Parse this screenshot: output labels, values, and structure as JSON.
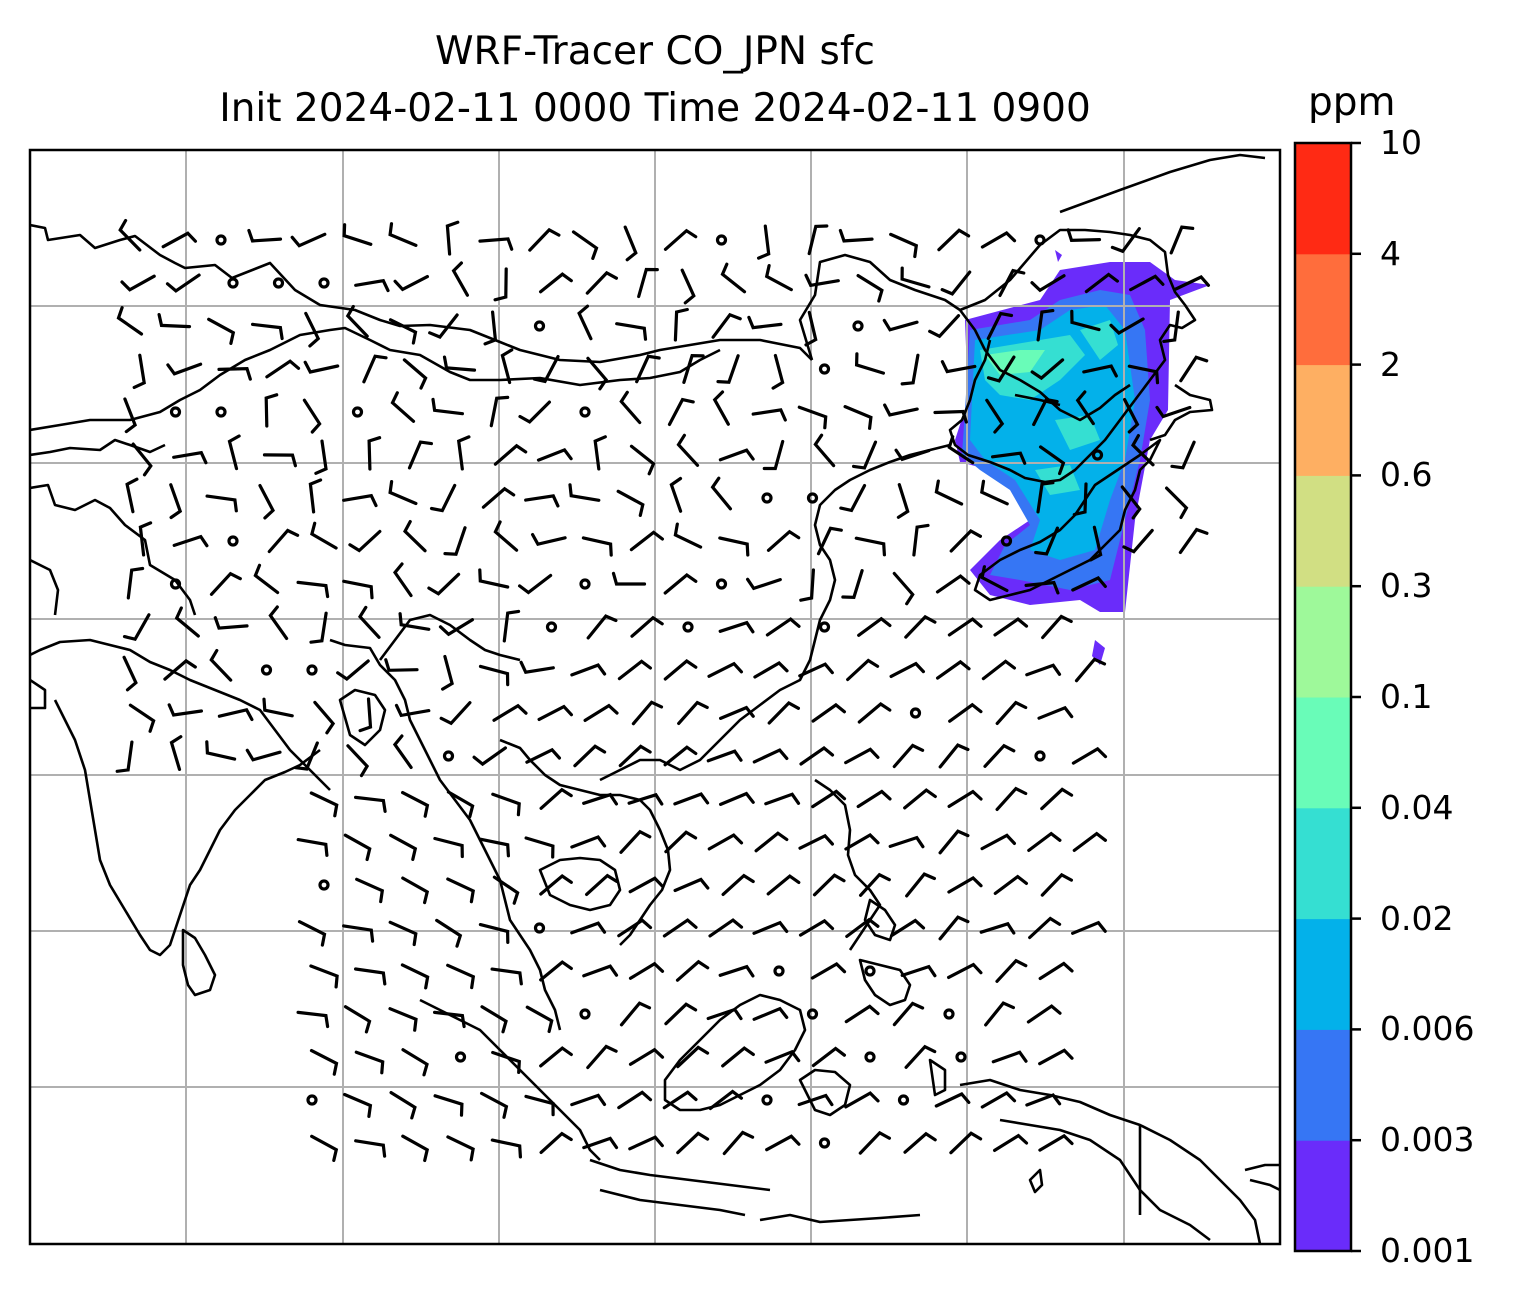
{
  "title": {
    "line1": "WRF-Tracer CO_JPN sfc",
    "line2": "Init 2024-02-11 0000 Time 2024-02-11 0900"
  },
  "colorbar": {
    "unit": "ppm",
    "ticks": [
      "10",
      "4",
      "2",
      "0.6",
      "0.3",
      "0.1",
      "0.04",
      "0.02",
      "0.006",
      "0.003",
      "0.001"
    ],
    "colors": [
      "#6a2cfa",
      "#3676f4",
      "#03b1ea",
      "#35dfd2",
      "#69fcb8",
      "#9ef99a",
      "#d1df83",
      "#feaf62",
      "#ff6d3c",
      "#ff2a14"
    ]
  },
  "map": {
    "gridlines": true,
    "features": [
      "coastlines",
      "country-borders",
      "wind-barbs",
      "tracer-shading"
    ]
  }
}
